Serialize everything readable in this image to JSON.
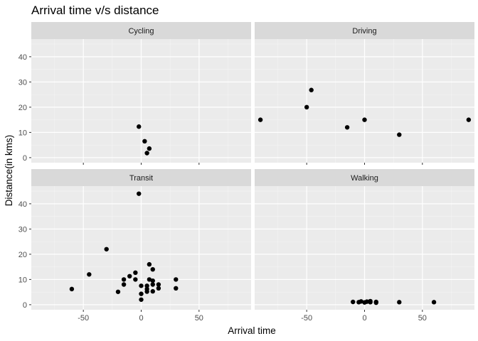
{
  "chart_data": {
    "type": "scatter",
    "title": "Arrival time v/s distance",
    "xlabel": "Arrival time",
    "ylabel": "Distance(in kms)",
    "xlim": [
      -95,
      95
    ],
    "ylim": [
      -2,
      47
    ],
    "xticks": [
      -50,
      0,
      50
    ],
    "yticks": [
      0,
      10,
      20,
      30,
      40
    ],
    "facets": [
      {
        "name": "Cycling",
        "points": [
          [
            -2,
            12.3
          ],
          [
            3,
            6.5
          ],
          [
            7,
            3.6
          ],
          [
            5,
            1.8
          ]
        ]
      },
      {
        "name": "Driving",
        "points": [
          [
            -90,
            15
          ],
          [
            -46,
            26.8
          ],
          [
            -50,
            20
          ],
          [
            -15,
            12
          ],
          [
            0,
            15
          ],
          [
            30,
            9.1
          ],
          [
            90,
            15
          ]
        ]
      },
      {
        "name": "Transit",
        "points": [
          [
            -60,
            6.2
          ],
          [
            -45,
            12
          ],
          [
            -30,
            22
          ],
          [
            -20,
            5.1
          ],
          [
            -15,
            8
          ],
          [
            -15,
            10
          ],
          [
            -10,
            11.3
          ],
          [
            -5,
            12.7
          ],
          [
            -5,
            10
          ],
          [
            -2,
            44
          ],
          [
            0,
            7.5
          ],
          [
            0,
            4.3
          ],
          [
            0,
            2
          ],
          [
            5,
            7.5
          ],
          [
            5,
            6.2
          ],
          [
            5,
            5.2
          ],
          [
            7,
            16
          ],
          [
            7,
            10
          ],
          [
            10,
            14
          ],
          [
            10,
            9.5
          ],
          [
            10,
            8
          ],
          [
            10,
            5.3
          ],
          [
            15,
            8
          ],
          [
            15,
            6.5
          ],
          [
            30,
            10
          ],
          [
            30,
            6.5
          ]
        ]
      },
      {
        "name": "Walking",
        "points": [
          [
            -10,
            1.1
          ],
          [
            -5,
            1.0
          ],
          [
            -3,
            1.3
          ],
          [
            0,
            0.9
          ],
          [
            2,
            1.2
          ],
          [
            5,
            1.0
          ],
          [
            5,
            1.4
          ],
          [
            10,
            0.8
          ],
          [
            10,
            1.1
          ],
          [
            30,
            1.0
          ],
          [
            60,
            1.0
          ]
        ]
      }
    ],
    "grid": true,
    "legend": "none"
  }
}
